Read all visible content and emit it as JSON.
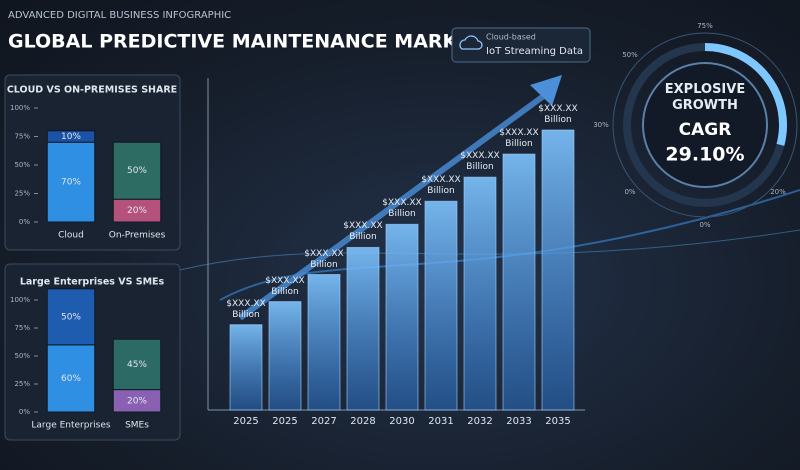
{
  "header": {
    "subtitle": "ADVANCED DIGITAL BUSINESS INFOGRAPHIC",
    "title": "GLOBAL PREDICTIVE MAINTENANCE MARKET"
  },
  "badge": {
    "line1": "Cloud-based",
    "line2": "IoT Streaming Data"
  },
  "chart_data": [
    {
      "type": "stacked_bar",
      "title": "CLOUD VS ON-PREMISES SHARE",
      "categories": [
        "Cloud",
        "On-Premises"
      ],
      "ylim": [
        0,
        100
      ],
      "yticks": [
        {
          "value": 0,
          "label": "0%"
        },
        {
          "value": 25,
          "label": "25%"
        },
        {
          "value": 50,
          "label": "50%"
        },
        {
          "value": 75,
          "label": "75%"
        },
        {
          "value": 100,
          "label": "100%"
        }
      ],
      "series": [
        {
          "colors": [
            "#2f8fe2",
            "#b5527c"
          ],
          "values": [
            70,
            20
          ],
          "value_labels": [
            "70%",
            "20%"
          ]
        },
        {
          "colors": [
            "#1c52a6",
            "#2c6c62"
          ],
          "values": [
            10,
            50
          ],
          "value_labels": [
            "10%",
            "50%"
          ]
        }
      ]
    },
    {
      "type": "stacked_bar",
      "title": "Large Enterprises VS SMEs",
      "categories": [
        "Large Enterprises",
        "SMEs"
      ],
      "ylim": [
        0,
        100
      ],
      "yticks": [
        {
          "value": 0,
          "label": "0%"
        },
        {
          "value": 25,
          "label": "25%"
        },
        {
          "value": 50,
          "label": "50%"
        },
        {
          "value": 75,
          "label": "75%"
        },
        {
          "value": 100,
          "label": "100%"
        }
      ],
      "series": [
        {
          "colors": [
            "#2f8fe2",
            "#8a60b2"
          ],
          "values": [
            60,
            20
          ],
          "value_labels": [
            "60%",
            "20%"
          ]
        },
        {
          "colors": [
            "#1e5cb0",
            "#2c6a66"
          ],
          "values": [
            50,
            45
          ],
          "value_labels": [
            "50%",
            "45%"
          ]
        }
      ]
    },
    {
      "type": "bar",
      "categories": [
        "2025",
        "2025",
        "2027",
        "2028",
        "2030",
        "2031",
        "2032",
        "2033",
        "2035"
      ],
      "values": [
        85,
        108,
        135,
        162,
        185,
        208,
        232,
        255,
        279
      ],
      "bar_labels": [
        "$XXX.XX Billion",
        "$XXX.XX Billion",
        "$XXX.XX Billion",
        "$XXX.XX Billion",
        "$XXX.XX Billion",
        "$XXX.XX Billion",
        "$XXX.XX Billion",
        "$XXX.XX Billion",
        "$XXX.XX Billion"
      ]
    },
    {
      "type": "gauge",
      "title": "EXPLOSIVE GROWTH",
      "label": "CAGR",
      "value": 29.1,
      "value_label": "29.10%",
      "scale_labels": [
        "75%",
        "50%",
        "30%",
        "0%",
        "0%",
        "20%"
      ]
    }
  ]
}
